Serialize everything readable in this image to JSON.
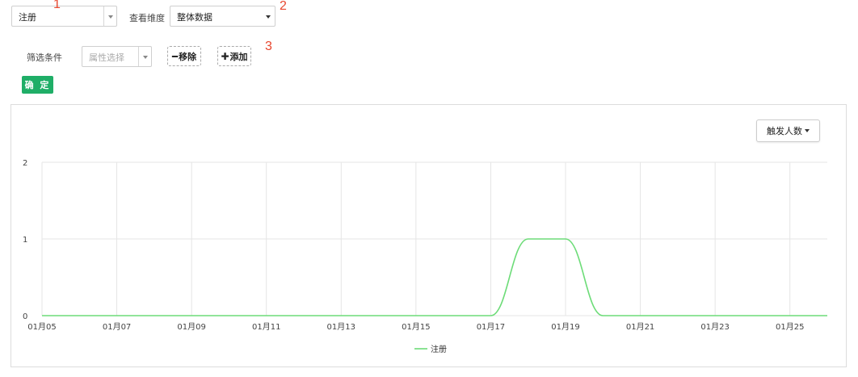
{
  "filters": {
    "event_select": {
      "value": "注册"
    },
    "dimension_label": "查看维度",
    "dimension_select": {
      "value": "整体数据"
    },
    "condition_label": "筛选条件",
    "attribute_select": {
      "placeholder": "属性选择"
    },
    "remove_button": "移除",
    "add_button": "添加",
    "confirm_button": "确 定"
  },
  "annotations": [
    "1",
    "2",
    "3"
  ],
  "chart_panel": {
    "metric_button": "触发人数"
  },
  "colors": {
    "accent_green": "#1fae67",
    "series_line": "#6ddc78",
    "annotation_red": "#e8472f"
  },
  "chart_data": {
    "type": "line",
    "x_tick_labels": [
      "01月05",
      "01月07",
      "01月09",
      "01月11",
      "01月13",
      "01月15",
      "01月17",
      "01月19",
      "01月21",
      "01月23",
      "01月25"
    ],
    "x": [
      "01月05",
      "01月06",
      "01月07",
      "01月08",
      "01月09",
      "01月10",
      "01月11",
      "01月12",
      "01月13",
      "01月14",
      "01月15",
      "01月16",
      "01月17",
      "01月18",
      "01月19",
      "01月20",
      "01月21",
      "01月22",
      "01月23",
      "01月24",
      "01月25",
      "01月26"
    ],
    "series": [
      {
        "name": "注册",
        "values": [
          0,
          0,
          0,
          0,
          0,
          0,
          0,
          0,
          0,
          0,
          0,
          0,
          0,
          1,
          1,
          0,
          0,
          0,
          0,
          0,
          0,
          0
        ]
      }
    ],
    "y_ticks": [
      0,
      1,
      2
    ],
    "ylim": [
      0,
      2
    ],
    "grid": true,
    "legend": "bottom-center"
  }
}
